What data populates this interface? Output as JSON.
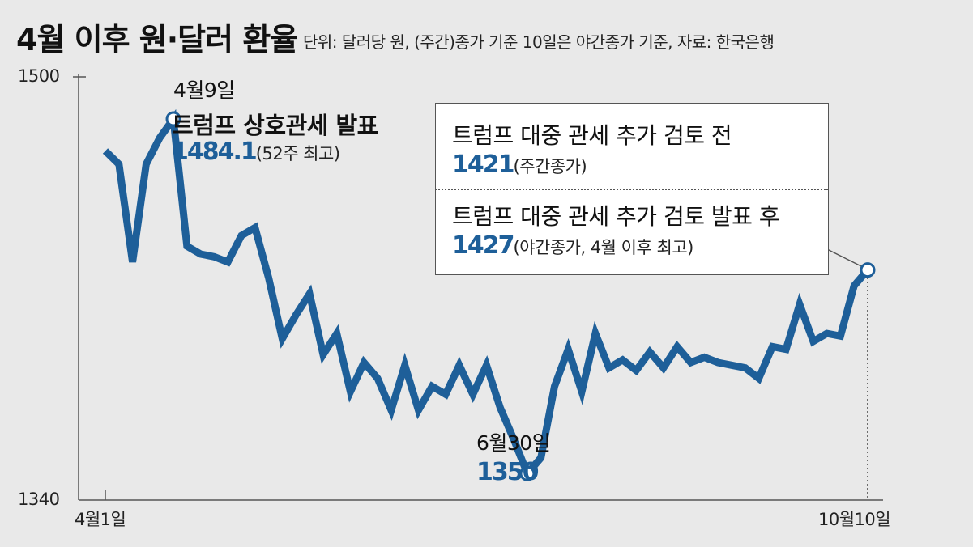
{
  "header": {
    "title": "4월 이후 원·달러 환율",
    "note": "단위: 달러당 원, (주간)종가 기준 10일은 야간종가 기준, 자료: 한국은행"
  },
  "axis": {
    "y_max_label": "1500",
    "y_min_label": "1340",
    "x_start_label": "4월1일",
    "x_end_label": "10월10일"
  },
  "annotations": {
    "peak": {
      "date": "4월9일",
      "event": "트럼프 상호관세 발표",
      "value": "1484.1",
      "note": "(52주 최고)"
    },
    "low": {
      "date": "6월30일",
      "value": "1350"
    },
    "callout": {
      "line1_text": "트럼프 대중 관세 추가 검토 전",
      "line1_value": "1421",
      "line1_note": "(주간종가)",
      "line2_text": "트럼프 대중 관세 추가 검토 발표 후",
      "line2_value": "1427",
      "line2_note": "(야간종가, 4월 이후 최고)"
    }
  },
  "chart_data": {
    "type": "line",
    "title": "4월 이후 원·달러 환율",
    "ylim": [
      1340,
      1500
    ],
    "xlabel": "",
    "ylabel": "",
    "tick_labels": [
      "4월1일",
      "10월10일"
    ],
    "line_color": "#1e5f99",
    "background": "#e9e9e9",
    "series": [
      {
        "values": [
          1472,
          1467,
          1430,
          1467,
          1477,
          1484.1,
          1436,
          1433,
          1432,
          1430,
          1440,
          1443,
          1424,
          1401,
          1410,
          1418,
          1395,
          1403,
          1381,
          1392,
          1386,
          1374,
          1391,
          1374,
          1383,
          1380,
          1391,
          1380,
          1391,
          1375,
          1363,
          1350,
          1356,
          1383,
          1397,
          1381,
          1403,
          1390,
          1393,
          1389,
          1396,
          1390,
          1398,
          1392,
          1394,
          1392,
          1391,
          1390,
          1386,
          1398,
          1397,
          1414,
          1400,
          1403,
          1402,
          1421,
          1427
        ]
      }
    ]
  }
}
